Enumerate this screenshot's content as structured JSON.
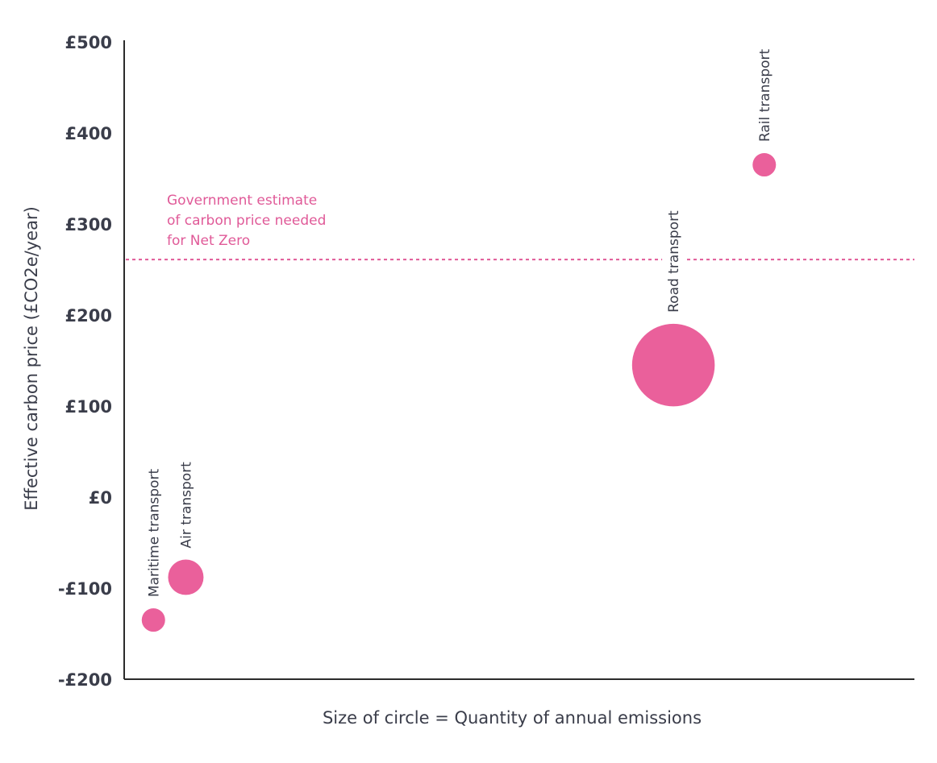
{
  "chart_data": {
    "type": "scatter",
    "title": "",
    "ylabel": "Effective carbon price (£CO2e/year)",
    "xlabel": "Size of circle = Quantity of annual emissions",
    "ylim": [
      -200,
      500
    ],
    "xlim": [
      0,
      100
    ],
    "yticks": [
      {
        "value": 500,
        "label": "£500"
      },
      {
        "value": 400,
        "label": "£400"
      },
      {
        "value": 300,
        "label": "£300"
      },
      {
        "value": 200,
        "label": "£200"
      },
      {
        "value": 100,
        "label": "£100"
      },
      {
        "value": 0,
        "label": "£0"
      },
      {
        "value": -100,
        "label": "-£100"
      },
      {
        "value": -200,
        "label": "-£200"
      }
    ],
    "points": [
      {
        "name": "Maritime transport",
        "x": 3.7,
        "y": -135,
        "size": 1.0
      },
      {
        "name": "Air transport",
        "x": 7.8,
        "y": -88,
        "size": 2.3
      },
      {
        "name": "Road transport",
        "x": 69.5,
        "y": 145,
        "size": 12.5
      },
      {
        "name": "Rail transport",
        "x": 81.0,
        "y": 365,
        "size": 1.0
      }
    ],
    "reference_line": {
      "y": 261,
      "label_lines": [
        "Government estimate",
        "of carbon price needed",
        "for Net Zero"
      ]
    },
    "grid": false,
    "legend": "none"
  },
  "colors": {
    "bubble": "#ea609b",
    "reference": "#e05a98",
    "text": "#3a3d4a",
    "axis": "#2b2b2b"
  }
}
